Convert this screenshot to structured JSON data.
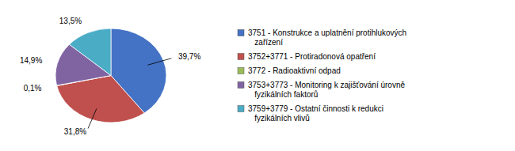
{
  "chart_data": {
    "type": "pie",
    "categories": [
      "3751 - Konstrukce a uplatnění protihlukových\n   zařízení",
      "3752+3771 - Protiradonová opatření",
      "3772 - Radioaktivní odpad",
      "3753+3773 - Monitoring k zajišťování úrovně\n   fyzikálních faktorů",
      "3759+3779 - Ostatní činnosti k redukci\n   fyzikálních vlivů"
    ],
    "values": [
      39.7,
      31.8,
      0.1,
      14.9,
      13.5
    ],
    "value_labels": [
      "39,7%",
      "31,8%",
      "0,1%",
      "14,9%",
      "13,5%"
    ],
    "colors": [
      "#4472C4",
      "#C0504D",
      "#9BBB59",
      "#8064A2",
      "#4BACC6"
    ],
    "data_labels": true,
    "legend": "right"
  }
}
